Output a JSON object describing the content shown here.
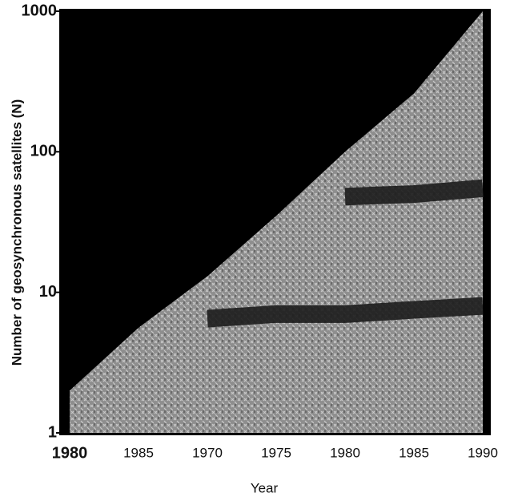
{
  "chart_data": {
    "type": "area",
    "xlabel": "Year",
    "ylabel": "Number of geosynchronous satellites (N)",
    "categories": [
      "1980",
      "1985",
      "1970",
      "1975",
      "1980",
      "1985",
      "1990"
    ],
    "series": [
      {
        "color": "#8e8e8e",
        "values": [
          2,
          5.6,
          13,
          35,
          100,
          260,
          1000
        ]
      },
      {
        "color": "#1c1c1c",
        "values": [
          null,
          null,
          null,
          null,
          48,
          50,
          55
        ]
      },
      {
        "color": "#1c1c1c",
        "values": [
          null,
          null,
          6.5,
          7,
          7,
          7.5,
          8
        ]
      }
    ],
    "log_y": true,
    "ylim": [
      1,
      1000
    ],
    "yticks": [
      1,
      10,
      100,
      1000
    ]
  }
}
